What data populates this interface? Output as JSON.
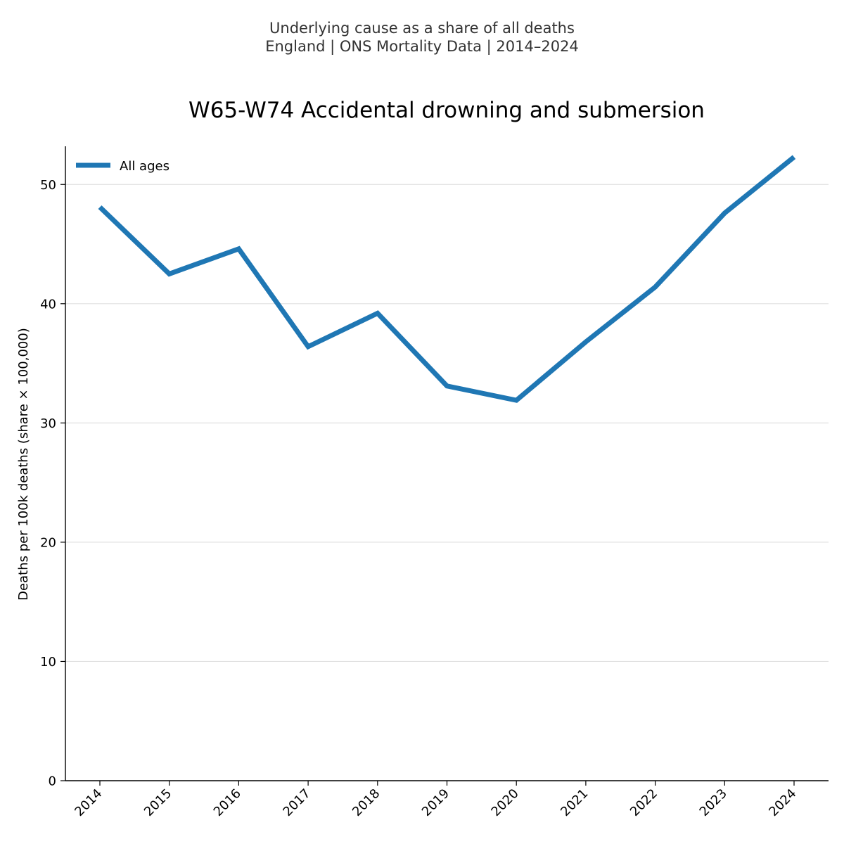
{
  "suptitle": {
    "line1": "Underlying cause as a share of all deaths",
    "line2": "England | ONS Mortality Data | 2014–2024"
  },
  "colors": {
    "series": "#1f77b4",
    "grid": "#e0e0e0",
    "axis": "#000000",
    "suptitle": "#333333"
  },
  "chart_data": {
    "type": "line",
    "title": "W65-W74 Accidental drowning and submersion",
    "xlabel": "",
    "ylabel": "Deaths per 100k deaths (share × 100,000)",
    "x": [
      "2014",
      "2015",
      "2016",
      "2017",
      "2018",
      "2019",
      "2020",
      "2021",
      "2022",
      "2023",
      "2024"
    ],
    "series": [
      {
        "name": "All ages",
        "values": [
          48.1,
          42.5,
          44.6,
          36.4,
          39.2,
          33.1,
          31.9,
          36.8,
          41.4,
          47.6,
          52.3
        ]
      }
    ],
    "ylim": [
      0,
      53.2
    ],
    "yticks": [
      0,
      10,
      20,
      30,
      40,
      50
    ],
    "grid": "horizontal",
    "legend": "top-left"
  }
}
